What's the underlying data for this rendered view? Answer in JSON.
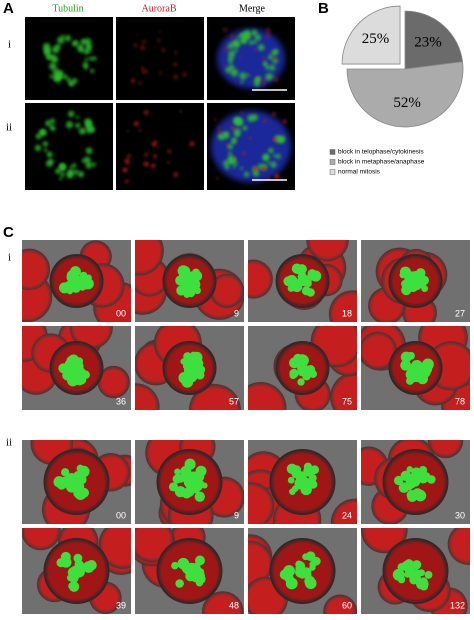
{
  "panel_a": {
    "label": "A",
    "columns": [
      "Tubulin",
      "AuroraB",
      "Merge"
    ],
    "rows": [
      "i",
      "ii"
    ]
  },
  "chart_data": {
    "type": "pie",
    "label": "B",
    "categories": [
      "block in telophase/cytokinesis",
      "block in metaphase/anaphase",
      "normal mitosis"
    ],
    "values": [
      23,
      52,
      25
    ],
    "value_labels": [
      "23%",
      "52%",
      "25%"
    ],
    "colors": [
      "#6b6b6b",
      "#ababab",
      "#dcdcdc"
    ],
    "legend": "bottom"
  },
  "panel_c": {
    "label": "C",
    "rows": [
      {
        "label": "i",
        "frames": [
          "00",
          "9",
          "18",
          "27",
          "36",
          "57",
          "75",
          "78"
        ]
      },
      {
        "label": "ii",
        "frames": [
          "00",
          "9",
          "24",
          "30",
          "39",
          "48",
          "60",
          "132"
        ]
      }
    ]
  }
}
